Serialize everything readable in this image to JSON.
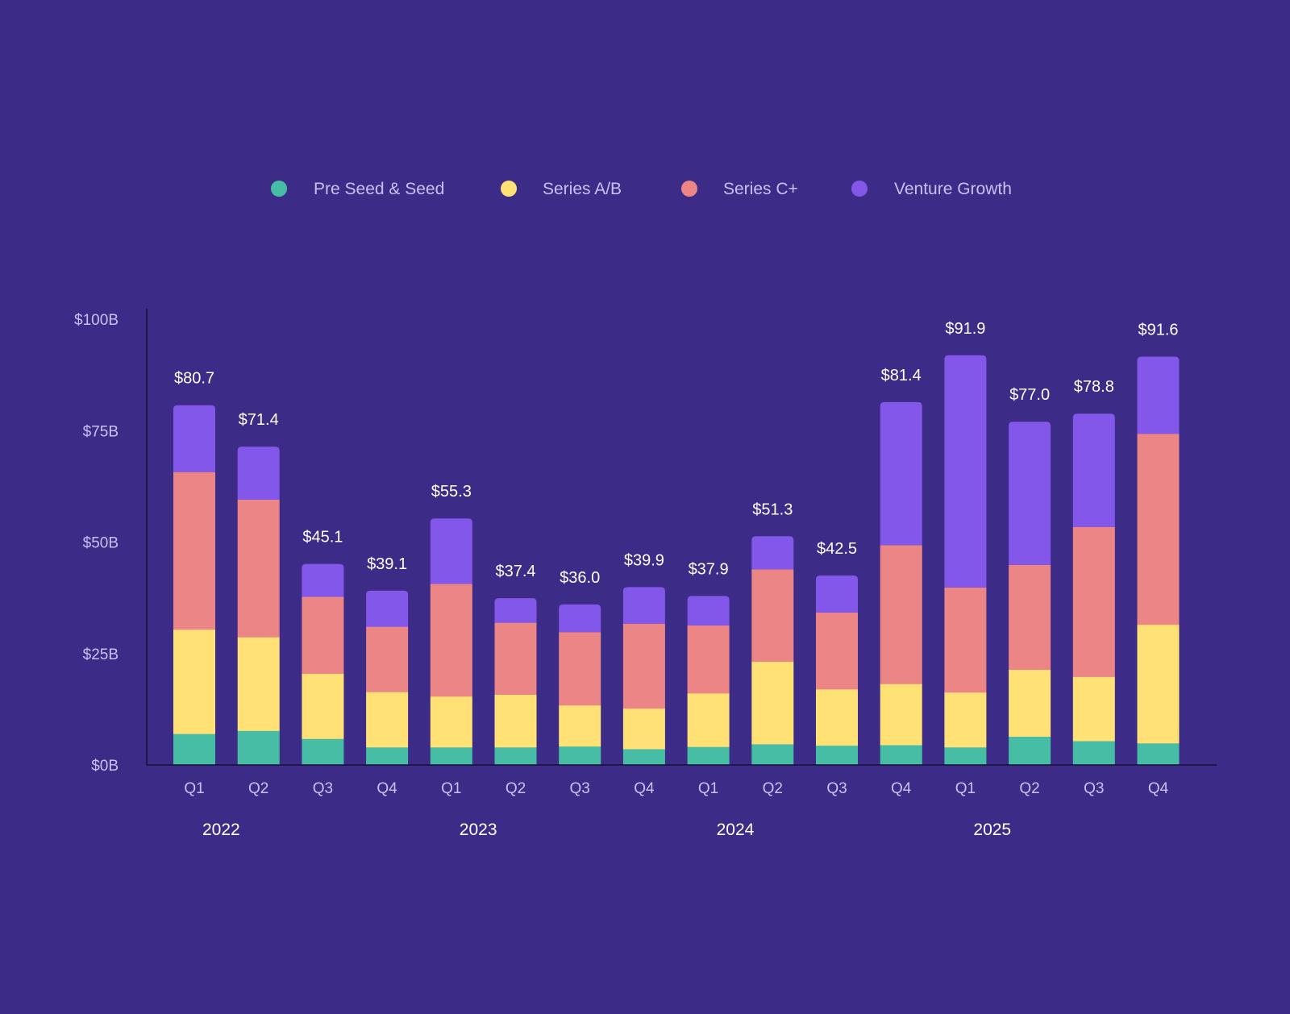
{
  "colors": {
    "background": "#3c2c88",
    "axis": "#141033"
  },
  "chart_data": {
    "type": "bar",
    "stacked": true,
    "title": "",
    "xlabel": "",
    "ylabel": "",
    "ylim": [
      0,
      100
    ],
    "yticks": [
      {
        "value": 0,
        "label": "$0B"
      },
      {
        "value": 25,
        "label": "$25B"
      },
      {
        "value": 50,
        "label": "$50B"
      },
      {
        "value": 75,
        "label": "$75B"
      },
      {
        "value": 100,
        "label": "$100B"
      }
    ],
    "legend_position": "top-center",
    "categories": [
      "Q1",
      "Q2",
      "Q3",
      "Q4",
      "Q1",
      "Q2",
      "Q3",
      "Q4",
      "Q1",
      "Q2",
      "Q3",
      "Q4",
      "Q1",
      "Q2",
      "Q3",
      "Q4"
    ],
    "groups": [
      {
        "label": "2022",
        "start": 0,
        "end": 3
      },
      {
        "label": "2023",
        "start": 4,
        "end": 7
      },
      {
        "label": "2024",
        "start": 8,
        "end": 11
      },
      {
        "label": "2025",
        "start": 12,
        "end": 15
      }
    ],
    "series": [
      {
        "name": "Pre Seed & Seed",
        "color": "#48bda5",
        "values": [
          7.0,
          7.7,
          5.9,
          4.0,
          4.0,
          4.0,
          4.2,
          3.6,
          4.1,
          4.7,
          4.4,
          4.5,
          4.0,
          6.4,
          5.4,
          4.9
        ]
      },
      {
        "name": "Series A/B",
        "color": "#ffe176",
        "values": [
          23.4,
          21.0,
          14.6,
          12.4,
          11.4,
          11.8,
          9.2,
          9.1,
          12.0,
          18.5,
          12.6,
          13.7,
          12.3,
          15.0,
          14.4,
          26.6
        ]
      },
      {
        "name": "Series C+",
        "color": "#ec8585",
        "values": [
          35.3,
          30.8,
          17.2,
          14.6,
          25.2,
          16.1,
          16.4,
          19.0,
          15.2,
          20.7,
          17.2,
          31.1,
          23.5,
          23.5,
          33.6,
          42.8
        ]
      },
      {
        "name": "Venture Growth",
        "color": "#8257e9",
        "values": [
          15.0,
          11.9,
          7.4,
          8.1,
          14.7,
          5.5,
          6.2,
          8.2,
          6.6,
          7.4,
          8.3,
          32.1,
          52.1,
          32.1,
          25.4,
          17.3
        ]
      }
    ],
    "totals": [
      "$80.7",
      "$71.4",
      "$45.1",
      "$39.1",
      "$55.3",
      "$37.4",
      "$36.0",
      "$39.9",
      "$37.9",
      "$51.3",
      "$42.5",
      "$81.4",
      "$91.9",
      "$77.0",
      "$78.8",
      "$91.6"
    ]
  }
}
